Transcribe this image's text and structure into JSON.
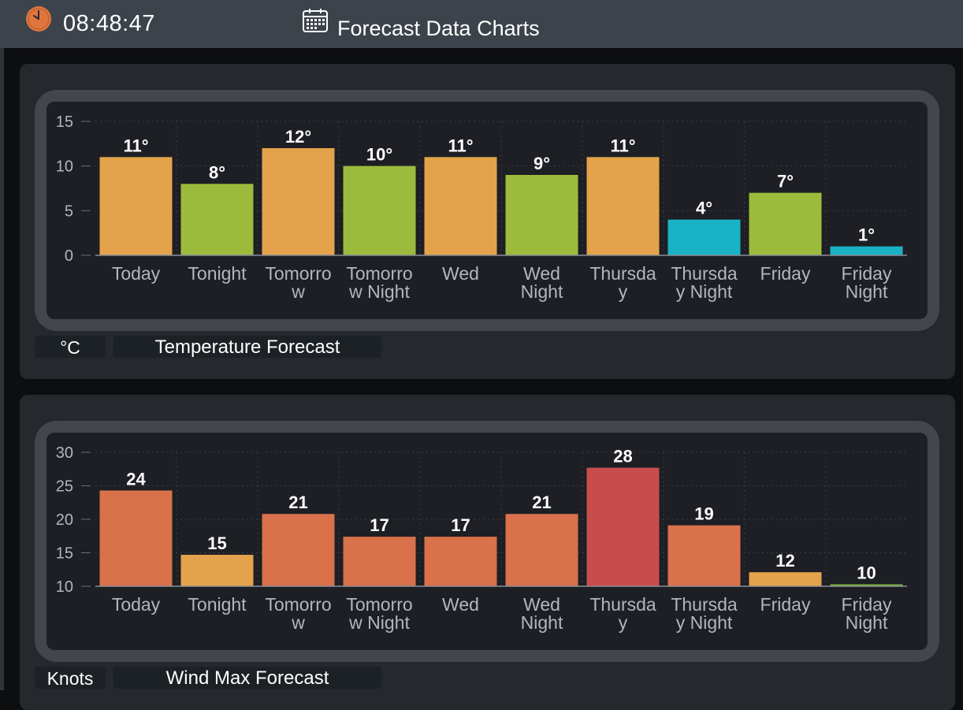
{
  "header": {
    "time": "08:48:47",
    "title": "Forecast Data Charts",
    "clock_icon": "clock-icon",
    "calendar_icon": "calendar-icon"
  },
  "colors": {
    "orange": "#e5a24c",
    "green": "#9cbb3c",
    "cyan": "#1ab3c6",
    "wind_orange": "#d9714b",
    "wind_red": "#c94c4c",
    "wind_light": "#e5a24c",
    "wind_green": "#7dab38"
  },
  "chart_data": [
    {
      "id": "temperature",
      "type": "bar",
      "title": "Temperature Forecast",
      "unit_label": "°C",
      "value_suffix": "°",
      "categories": [
        [
          "Today"
        ],
        [
          "Tonight"
        ],
        [
          "Tomorro",
          "w"
        ],
        [
          "Tomorro",
          "w Night"
        ],
        [
          "Wed"
        ],
        [
          "Wed",
          "Night"
        ],
        [
          "Thursda",
          "y"
        ],
        [
          "Thursda",
          "y Night"
        ],
        [
          "Friday"
        ],
        [
          "Friday",
          "Night"
        ]
      ],
      "values": [
        11,
        8,
        12,
        10,
        11,
        9,
        11,
        4,
        7,
        1
      ],
      "bar_colors": [
        "#e5a24c",
        "#9cbb3c",
        "#e5a24c",
        "#9cbb3c",
        "#e5a24c",
        "#9cbb3c",
        "#e5a24c",
        "#1ab3c6",
        "#9cbb3c",
        "#1ab3c6"
      ],
      "ylim": [
        0,
        15
      ],
      "yticks": [
        0,
        5,
        10,
        15
      ],
      "grid": true
    },
    {
      "id": "wind",
      "type": "bar",
      "title": "Wind Max Forecast",
      "unit_label": "Knots",
      "value_suffix": "",
      "categories": [
        [
          "Today"
        ],
        [
          "Tonight"
        ],
        [
          "Tomorro",
          "w"
        ],
        [
          "Tomorro",
          "w Night"
        ],
        [
          "Wed"
        ],
        [
          "Wed",
          "Night"
        ],
        [
          "Thursda",
          "y"
        ],
        [
          "Thursda",
          "y Night"
        ],
        [
          "Friday"
        ],
        [
          "Friday",
          "Night"
        ]
      ],
      "values": [
        24.3,
        14.7,
        20.8,
        17.4,
        17.4,
        20.8,
        27.7,
        19.1,
        12.1,
        10.3
      ],
      "value_labels": [
        "24",
        "15",
        "21",
        "17",
        "17",
        "21",
        "28",
        "19",
        "12",
        "10"
      ],
      "bar_colors": [
        "#d9714b",
        "#e5a24c",
        "#d9714b",
        "#d9714b",
        "#d9714b",
        "#d9714b",
        "#c94c4c",
        "#d9714b",
        "#e5a24c",
        "#7dab38"
      ],
      "ylim": [
        10,
        30
      ],
      "yticks": [
        10,
        15,
        20,
        25,
        30
      ],
      "grid": true
    }
  ]
}
